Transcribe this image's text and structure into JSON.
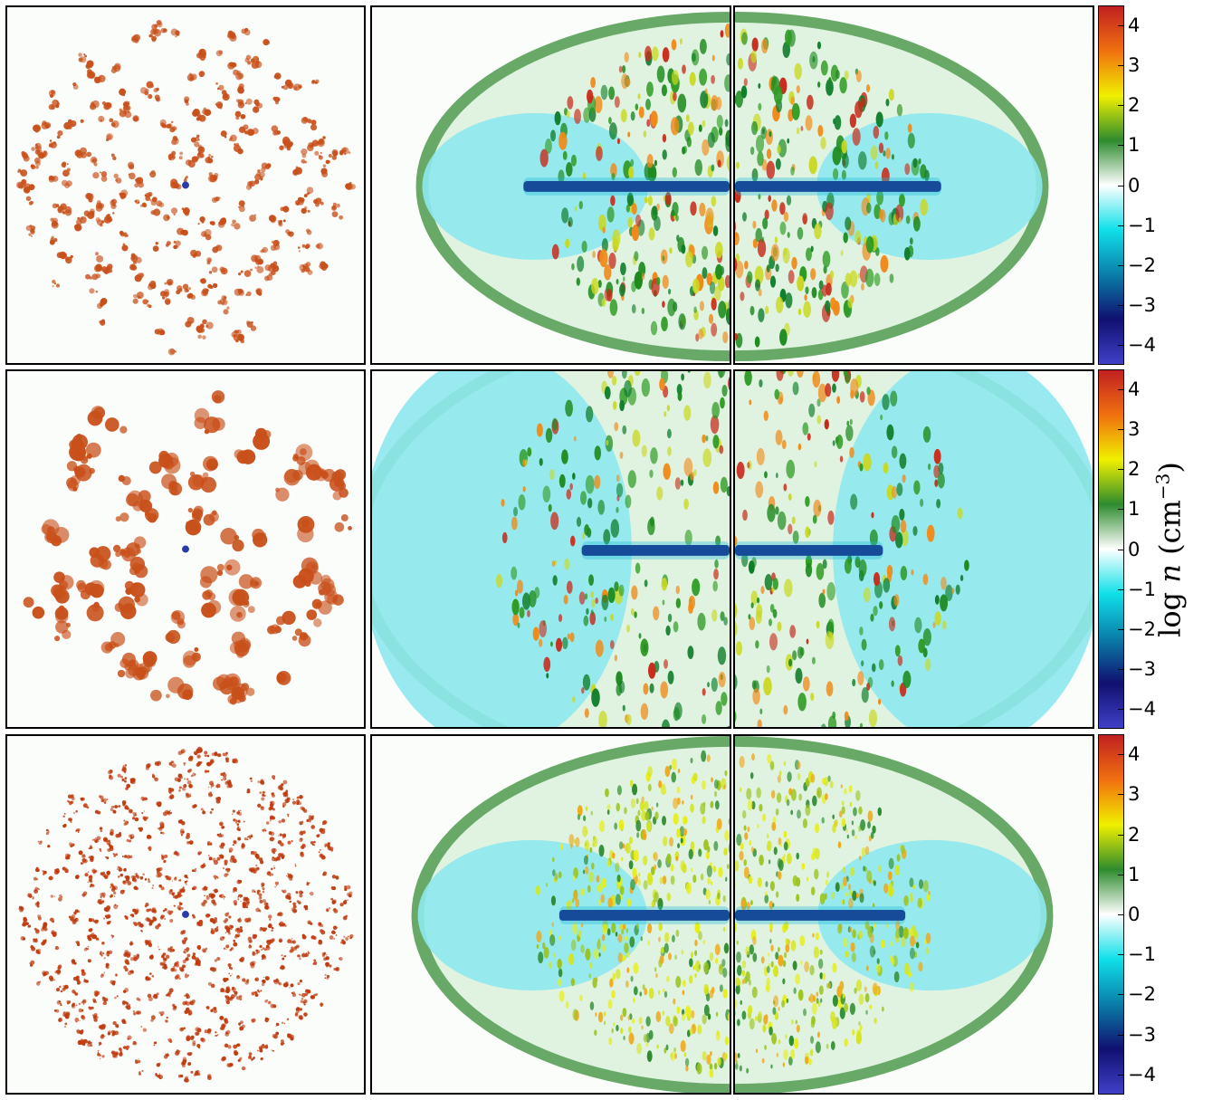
{
  "colorbar": {
    "label_main": "log ",
    "label_var": "n",
    "label_unit": " (cm",
    "label_exp": "−3",
    "label_close": ")",
    "ticks": [
      "4",
      "3",
      "2",
      "1",
      "0",
      "−1",
      "−2",
      "−3",
      "−4"
    ],
    "range": [
      -4.5,
      4.5
    ],
    "colors": [
      "#4040c8",
      "#101070",
      "#0a7ea8",
      "#10e0e8",
      "#ffffff",
      "#2e8b2e",
      "#f0f000",
      "#f07010",
      "#c02020"
    ]
  },
  "rows": [
    {
      "name": "row-top",
      "cloud_color": "#c8501a",
      "clump_count": 260,
      "clump_scale": 1.0
    },
    {
      "name": "row-middle",
      "cloud_color": "#c8501a",
      "clump_count": 90,
      "clump_scale": 2.3
    },
    {
      "name": "row-bottom",
      "cloud_color": "#c03c10",
      "clump_count": 700,
      "clump_scale": 0.6
    }
  ],
  "colors": {
    "star_marker": "#2b3aa8",
    "shell": "#4e9a4e",
    "hot_gas": "#8ee8ee",
    "jet": "#12127a",
    "dense": "#2e8b2e"
  }
}
